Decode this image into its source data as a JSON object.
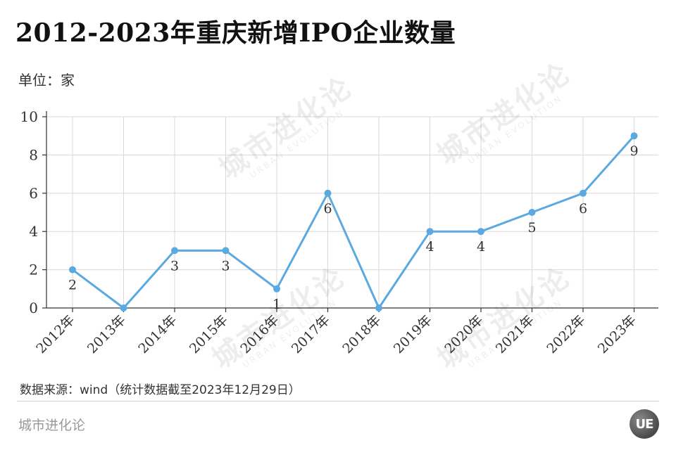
{
  "header": {
    "title": "2012-2023年重庆新增IPO企业数量",
    "unit": "单位：家"
  },
  "footer": {
    "source": "数据来源：wind（统计数据截至2023年12月29日）",
    "brand": "城市进化论",
    "logo_text": "UE"
  },
  "watermark": {
    "text": "城市进化论",
    "subtext": "URBAN EVOLUTION"
  },
  "colors": {
    "line": "#5aa9e0",
    "grid": "#d9d9d9",
    "axis": "#333333"
  },
  "chart_data": {
    "type": "line",
    "title": "2012-2023年重庆新增IPO企业数量",
    "xlabel": "",
    "ylabel": "",
    "categories": [
      "2012年",
      "2013年",
      "2014年",
      "2015年",
      "2016年",
      "2017年",
      "2018年",
      "2019年",
      "2020年",
      "2021年",
      "2022年",
      "2023年"
    ],
    "values": [
      2,
      0,
      3,
      3,
      1,
      6,
      0,
      4,
      4,
      5,
      6,
      9
    ],
    "data_labels": [
      "2",
      "",
      "3",
      "3",
      "1",
      "6",
      "",
      "4",
      "4",
      "5",
      "6",
      "9"
    ],
    "ylim": [
      0,
      10
    ],
    "yticks": [
      0,
      2,
      4,
      6,
      8,
      10
    ],
    "grid": true,
    "legend": "none"
  }
}
